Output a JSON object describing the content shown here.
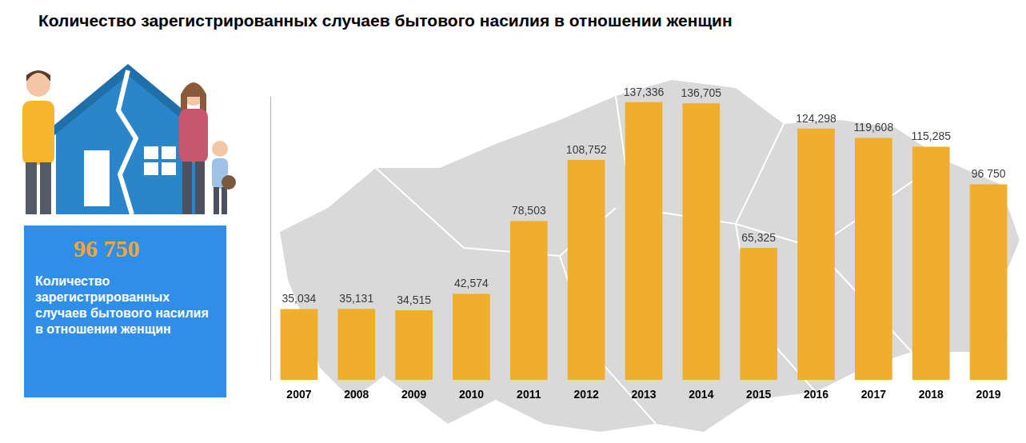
{
  "chart_data": {
    "type": "bar",
    "title": "Количество зарегистрированных случаев бытового насилия в отношении женщин",
    "categories": [
      "2007",
      "2008",
      "2009",
      "2010",
      "2011",
      "2012",
      "2013",
      "2014",
      "2015",
      "2016",
      "2017",
      "2018",
      "2019"
    ],
    "values": [
      35034,
      35131,
      34515,
      42574,
      78503,
      108752,
      137336,
      136705,
      65325,
      124298,
      119608,
      115285,
      96750
    ],
    "value_labels": [
      "35,034",
      "35,131",
      "34,515",
      "42,574",
      "78,503",
      "108,752",
      "137,336",
      "136,705",
      "65,325",
      "124,298",
      "119,608",
      "115,285",
      "96 750"
    ],
    "color": "#efae2c",
    "ylim": [
      0,
      140000
    ],
    "grid": false,
    "data_labels": true,
    "tick_labels": "x"
  },
  "highlight": {
    "value": 96750,
    "label": "96 750",
    "text": "Количество зарегистрированных случаев бытового насилия в отношении женщин"
  }
}
